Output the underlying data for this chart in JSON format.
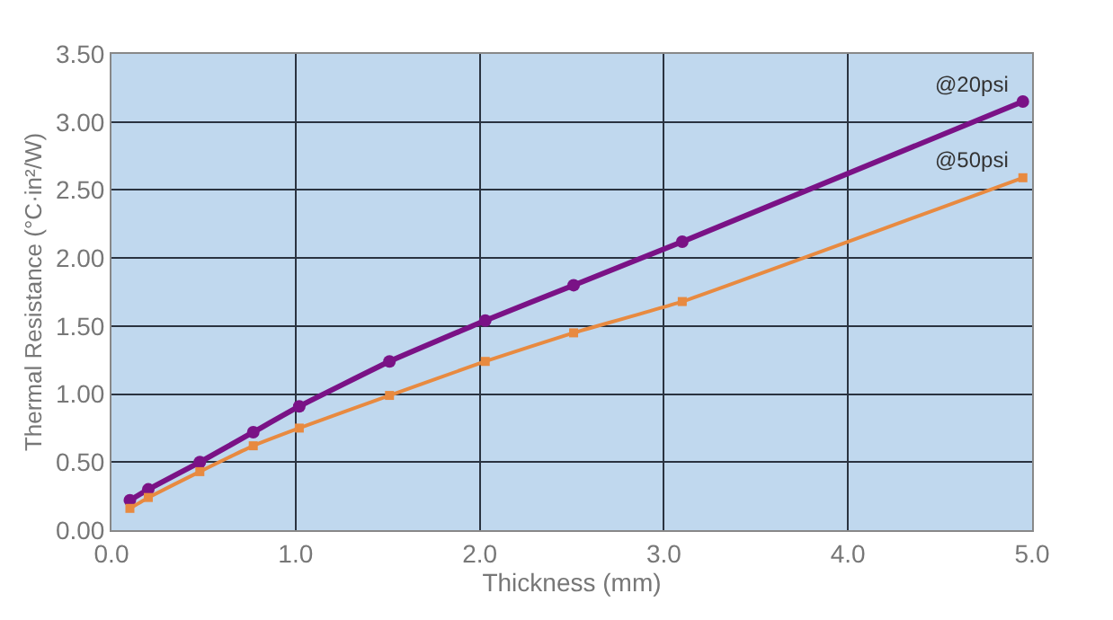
{
  "chart_data": {
    "type": "line",
    "xlabel": "Thickness (mm)",
    "ylabel": "Thermal Resistance (°C·in²/W)",
    "xlim": [
      0,
      5.0
    ],
    "xticks": [
      {
        "value": 0,
        "label": "0.0"
      },
      {
        "value": 1,
        "label": "1.0"
      },
      {
        "value": 2,
        "label": "2.0"
      },
      {
        "value": 3,
        "label": "3.0"
      },
      {
        "value": 4,
        "label": "4.0"
      },
      {
        "value": 5,
        "label": "5.0"
      }
    ],
    "ylim": [
      0,
      3.5
    ],
    "yticks": [
      {
        "value": 0,
        "label": "0.00"
      },
      {
        "value": 0.5,
        "label": "0.50"
      },
      {
        "value": 1,
        "label": "1.00"
      },
      {
        "value": 1.5,
        "label": "1.50"
      },
      {
        "value": 2,
        "label": "2.00"
      },
      {
        "value": 2.5,
        "label": "2.50"
      },
      {
        "value": 3,
        "label": "3.00"
      },
      {
        "value": 3.5,
        "label": "3.50"
      }
    ],
    "grid": true,
    "legend": false,
    "line_style": "solid",
    "series": [
      {
        "name": "@20psi",
        "color": "#7a1286",
        "marker": "circle",
        "x": [
          0.1,
          0.2,
          0.48,
          0.77,
          1.02,
          1.51,
          2.03,
          2.51,
          3.1,
          4.95
        ],
        "values": [
          0.22,
          0.3,
          0.5,
          0.72,
          0.91,
          1.24,
          1.54,
          1.8,
          2.12,
          3.15
        ]
      },
      {
        "name": "@50psi",
        "color": "#e88a40",
        "marker": "square",
        "x": [
          0.1,
          0.2,
          0.48,
          0.77,
          1.02,
          1.51,
          2.03,
          2.51,
          3.1,
          4.95
        ],
        "values": [
          0.16,
          0.24,
          0.43,
          0.62,
          0.75,
          0.99,
          1.24,
          1.45,
          1.68,
          2.59
        ]
      }
    ]
  }
}
